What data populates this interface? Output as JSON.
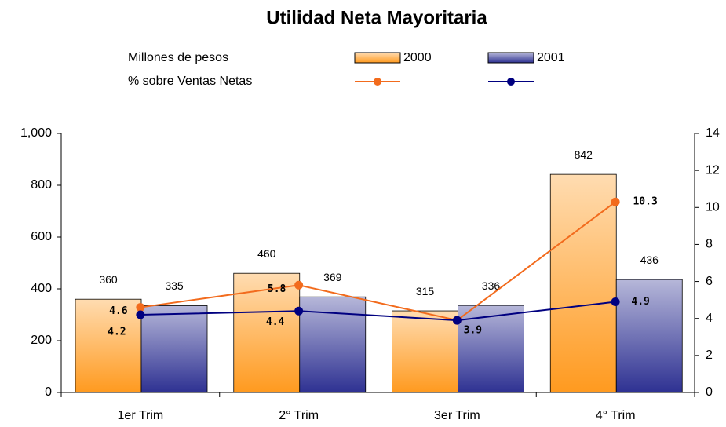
{
  "chart_data": {
    "type": "bar",
    "title": "Utilidad Neta Mayoritaria",
    "legend_rows": [
      "Millones de pesos",
      "% sobre Ventas Netas"
    ],
    "categories": [
      "1er Trim",
      "2° Trim",
      "3er Trim",
      "4° Trim"
    ],
    "series": [
      {
        "name": "2000",
        "type": "bar",
        "color": "#ff9a1f",
        "values": [
          360,
          460,
          315,
          842
        ]
      },
      {
        "name": "2001",
        "type": "bar",
        "color": "#2e3192",
        "values": [
          335,
          369,
          336,
          436
        ]
      },
      {
        "type": "line",
        "axis": "y2",
        "color": "#f26b1d",
        "values": [
          4.6,
          5.8,
          3.9,
          10.3
        ],
        "value_labels": [
          "4.6",
          "5.8",
          null,
          "10.3"
        ]
      },
      {
        "type": "line",
        "axis": "y2",
        "color": "#000080",
        "values": [
          4.2,
          4.4,
          3.9,
          4.9
        ]
      }
    ],
    "ylim": [
      0,
      1000
    ],
    "yticks": [
      0,
      200,
      400,
      600,
      800,
      {
        "value": 1000,
        "label": "1,000"
      }
    ],
    "y2lim": [
      0,
      14
    ],
    "y2ticks": [
      0,
      2,
      4,
      6,
      8,
      10,
      12,
      14
    ]
  }
}
